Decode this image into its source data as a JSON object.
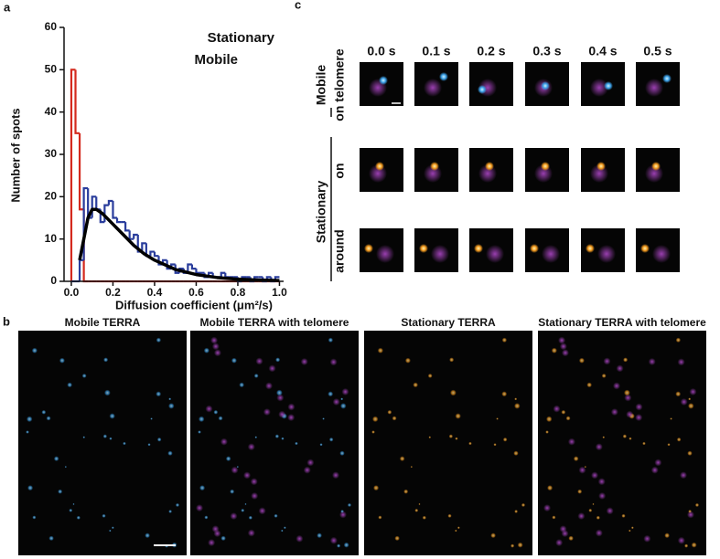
{
  "panels": [
    "a",
    "b",
    "c"
  ],
  "chart_data": {
    "type": "histogram",
    "ylabel": "Number of spots",
    "xlabel": "Diffusion coefficient (μm²/s)",
    "bins": [
      0,
      0.02,
      0.04,
      0.06,
      0.08,
      0.1,
      0.12,
      0.14,
      0.16,
      0.18,
      0.2,
      0.22,
      0.24,
      0.26,
      0.28,
      0.3,
      0.32,
      0.34,
      0.36,
      0.38,
      0.4,
      0.42,
      0.44,
      0.46,
      0.48,
      0.5,
      0.52,
      0.54,
      0.56,
      0.58,
      0.6,
      0.62,
      0.64,
      0.66,
      0.68,
      0.7,
      0.72,
      0.74,
      0.76,
      0.78,
      0.8,
      0.82,
      0.84,
      0.86,
      0.88,
      0.9,
      0.92,
      0.94,
      0.96,
      0.98,
      1.0
    ],
    "series": [
      {
        "name": "Stationary",
        "color": "#d42a1e",
        "text_color": "#9b1b14",
        "values": [
          50,
          35,
          17,
          0,
          0,
          0,
          0,
          0,
          0,
          0,
          0,
          0,
          0,
          0,
          0,
          0,
          0,
          0,
          0,
          0,
          0,
          0,
          0,
          0,
          0,
          0,
          0,
          0,
          0,
          0,
          0,
          0,
          0,
          0,
          0,
          0,
          0,
          0,
          0,
          0,
          0,
          0,
          0,
          0,
          0,
          0,
          0,
          0,
          0,
          0
        ]
      },
      {
        "name": "Mobile",
        "color": "#2a3d9c",
        "text_color": "#2b2f7e",
        "values": [
          0,
          0,
          5,
          22,
          15,
          20,
          17,
          14,
          18,
          19,
          15,
          14,
          14,
          12,
          10,
          11,
          7,
          9,
          6,
          7,
          6,
          4,
          5,
          3,
          4,
          2,
          3,
          2,
          4,
          3,
          2,
          2,
          1,
          2,
          1,
          1,
          2,
          1,
          1,
          1,
          0,
          1,
          1,
          0,
          1,
          1,
          0,
          1,
          0,
          1
        ]
      }
    ],
    "fit": {
      "color": "#000000",
      "x": [
        0.04,
        0.06,
        0.08,
        0.1,
        0.12,
        0.15,
        0.2,
        0.25,
        0.3,
        0.35,
        0.4,
        0.5,
        0.6,
        0.7,
        0.8,
        0.9,
        1.0
      ],
      "values": [
        5,
        10,
        15,
        17,
        17,
        16,
        13.5,
        11,
        8.5,
        6.5,
        5,
        2.8,
        1.6,
        0.9,
        0.5,
        0.3,
        0.2
      ]
    },
    "xlim": [
      -0.035,
      1.02
    ],
    "ylim": [
      0,
      60
    ],
    "xticks": [
      {
        "value": 0,
        "label": "0.0"
      },
      0.2,
      0.4,
      0.6,
      0.8,
      {
        "value": 1,
        "label": "1.0"
      }
    ],
    "yticks": [
      0,
      10,
      20,
      30,
      40,
      50,
      60
    ],
    "legend": "upper right"
  },
  "image_panel": {
    "titles": [
      "Mobile TERRA",
      "Mobile TERRA with telomere",
      "Stationary TERRA",
      "Stationary TERRA with telomere"
    ]
  },
  "time_series": {
    "times": [
      "0.0 s",
      "0.1 s",
      "0.2 s",
      "0.3 s",
      "0.4 s",
      "0.5 s"
    ],
    "row_labels": [
      "Mobile",
      "on telomere",
      "Stationary",
      "on",
      "around"
    ]
  }
}
